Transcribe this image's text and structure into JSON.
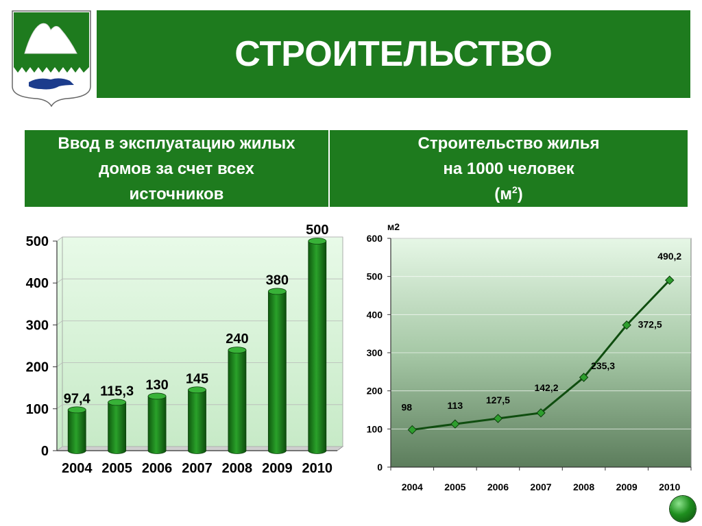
{
  "title": "СТРОИТЕЛЬСТВО",
  "headers": {
    "left_lines": [
      "Ввод в эксплуатацию жилых",
      "домов за счет всех",
      "источников"
    ],
    "right_lines": [
      "Строительство жилья",
      "на 1000 человек"
    ],
    "right_unit_open": "(м",
    "right_unit_sup": "2",
    "right_unit_close": ")"
  },
  "colors": {
    "header_green": "#1e7b1e",
    "bar_green": "#1f8a1f",
    "line_green": "#0f4d0f",
    "marker_green": "#2e9e2e"
  },
  "icons": {
    "emblem": "city-emblem-icon",
    "nav": "nav-button-icon"
  },
  "chart_data": [
    {
      "type": "bar",
      "categories": [
        "2004",
        "2005",
        "2006",
        "2007",
        "2008",
        "2009",
        "2010"
      ],
      "values": [
        97.4,
        115.3,
        130,
        145,
        240,
        380,
        500
      ],
      "value_labels": [
        "97,4",
        "115,3",
        "130",
        "145",
        "240",
        "380",
        "500"
      ],
      "yticks": [
        "0",
        "100",
        "200",
        "300",
        "400",
        "500"
      ],
      "ylim": [
        0,
        500
      ],
      "grid": true,
      "title": "",
      "xlabel": "",
      "ylabel": ""
    },
    {
      "type": "line",
      "categories": [
        "2004",
        "2005",
        "2006",
        "2007",
        "2008",
        "2009",
        "2010"
      ],
      "values": [
        98,
        113,
        127.5,
        142.2,
        235.3,
        372.5,
        490.2
      ],
      "value_labels": [
        "98",
        "113",
        "127,5",
        "142,2",
        "235,3",
        "372,5",
        "490,2"
      ],
      "yticks": [
        "0",
        "100",
        "200",
        "300",
        "400",
        "500",
        "600"
      ],
      "ylim": [
        0,
        600
      ],
      "ylabel": "м2",
      "grid": true,
      "title": "",
      "xlabel": ""
    }
  ]
}
